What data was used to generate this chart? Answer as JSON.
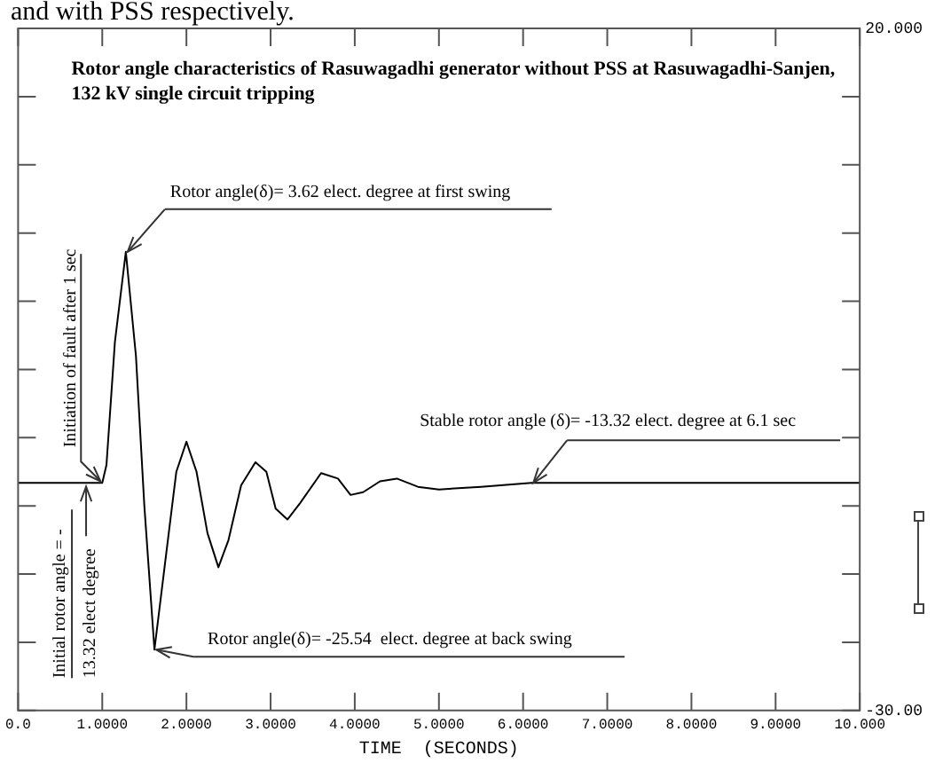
{
  "chart_data": {
    "type": "line",
    "title": "Rotor angle characteristics of Rasuwagadhi generator without PSS at Rasuwagadhi-Sanjen, 132 kV single circuit tripping",
    "xlabel": "TIME  (SECONDS)",
    "x": [
      0,
      0.5,
      1.0,
      1.05,
      1.15,
      1.28,
      1.4,
      1.5,
      1.62,
      1.75,
      1.88,
      2.0,
      2.12,
      2.25,
      2.38,
      2.5,
      2.65,
      2.82,
      2.95,
      3.06,
      3.2,
      3.35,
      3.6,
      3.8,
      3.95,
      4.1,
      4.3,
      4.5,
      4.75,
      5.0,
      5.5,
      6.1,
      7,
      8,
      9,
      10
    ],
    "series": [
      {
        "color": "#000000",
        "values": [
          -13.32,
          -13.32,
          -13.32,
          -12,
          -3,
          3.62,
          -4,
          -15,
          -25.54,
          -19,
          -12.5,
          -10.3,
          -12.5,
          -17,
          -19.5,
          -17.5,
          -13.5,
          -11.8,
          -12.5,
          -15.2,
          -16,
          -14.8,
          -12.6,
          -13.0,
          -14.2,
          -14.0,
          -13.2,
          -13.0,
          -13.6,
          -13.8,
          -13.6,
          -13.32,
          -13.32,
          -13.32,
          -13.32,
          -13.32
        ]
      }
    ],
    "xlim": [
      0,
      10
    ],
    "xticks": [
      {
        "value": 0,
        "label": "0.0"
      },
      {
        "value": 1,
        "label": "1.0000"
      },
      {
        "value": 2,
        "label": "2.0000"
      },
      {
        "value": 3,
        "label": "3.0000"
      },
      {
        "value": 4,
        "label": "4.0000"
      },
      {
        "value": 5,
        "label": "5.0000"
      },
      {
        "value": 6,
        "label": "6.0000"
      },
      {
        "value": 7,
        "label": "7.0000"
      },
      {
        "value": 8,
        "label": "8.0000"
      },
      {
        "value": 9,
        "label": "9.0000"
      },
      {
        "value": 10,
        "label": "10.000"
      }
    ],
    "ylim": [
      -30,
      20
    ],
    "yticks": [
      {
        "value": -30,
        "label": "-30.00"
      },
      {
        "value": -25,
        "label": null
      },
      {
        "value": -20,
        "label": null
      },
      {
        "value": -15,
        "label": null
      },
      {
        "value": -10,
        "label": null
      },
      {
        "value": -5,
        "label": null
      },
      {
        "value": 0,
        "label": null
      },
      {
        "value": 5,
        "label": null
      },
      {
        "value": 10,
        "label": null
      },
      {
        "value": 15,
        "label": null
      },
      {
        "value": 20,
        "label": "20.000"
      }
    ],
    "grid": false,
    "legend": false,
    "marker": "none",
    "line_style": "solid",
    "annotations": [
      {
        "text": "Rotor angle(δ)= 3.62 elect. degree at first swing",
        "x": 1.28,
        "y": 3.62
      },
      {
        "text": "Rotor angle(δ)= -25.54  elect. degree at back swing",
        "x": 1.62,
        "y": -25.54
      },
      {
        "text": "Stable rotor angle (δ)= -13.32 elect. degree at 6.1 sec",
        "x": 6.1,
        "y": -13.32
      },
      {
        "text": "Initiation of fault after 1 sec",
        "x": 1.0,
        "y": -13.32
      },
      {
        "text": "Initial rotor angle = - 13.32 elect degree",
        "x": 0.85,
        "y": -13.32
      },
      "and with PSS respectively."
    ]
  }
}
